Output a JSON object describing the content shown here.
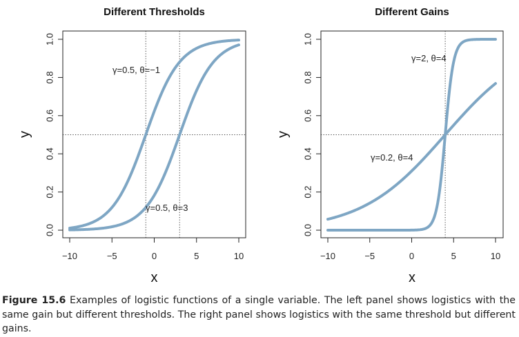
{
  "chart_data": [
    {
      "type": "line",
      "title": "Different Thresholds",
      "xlabel": "x",
      "ylabel": "y",
      "xlim": [
        -10,
        10
      ],
      "ylim": [
        0,
        1
      ],
      "xticks": [
        "−10",
        "−5",
        "0",
        "5",
        "10"
      ],
      "yticks": [
        "0.0",
        "0.2",
        "0.4",
        "0.6",
        "0.8",
        "1.0"
      ],
      "reference_lines": {
        "vertical": [
          -1,
          3
        ],
        "horizontal": [
          0.5
        ]
      },
      "series": [
        {
          "name": "γ=0.5,  θ=−1",
          "function": "logistic",
          "gain": 0.5,
          "threshold": -1
        },
        {
          "name": "γ=0.5,  θ=3",
          "function": "logistic",
          "gain": 0.5,
          "threshold": 3
        }
      ],
      "grid": false,
      "line_color": "#7ea6c4"
    },
    {
      "type": "line",
      "title": "Different Gains",
      "xlabel": "x",
      "ylabel": "y",
      "xlim": [
        -10,
        10
      ],
      "ylim": [
        0,
        1
      ],
      "xticks": [
        "−10",
        "−5",
        "0",
        "5",
        "10"
      ],
      "yticks": [
        "0.0",
        "0.2",
        "0.4",
        "0.6",
        "0.8",
        "1.0"
      ],
      "reference_lines": {
        "vertical": [
          4
        ],
        "horizontal": [
          0.5
        ]
      },
      "series": [
        {
          "name": "γ=2,  θ=4",
          "function": "logistic",
          "gain": 2,
          "threshold": 4
        },
        {
          "name": "γ=0.2,  θ=4",
          "function": "logistic",
          "gain": 0.2,
          "threshold": 4
        }
      ],
      "grid": false,
      "line_color": "#7ea6c4"
    }
  ],
  "caption": {
    "label": "Figure 15.6",
    "text": "Examples of logistic functions of a single variable. The left panel shows logistics with the same gain but different thresholds. The right panel shows logistics with the same threshold but different gains."
  }
}
